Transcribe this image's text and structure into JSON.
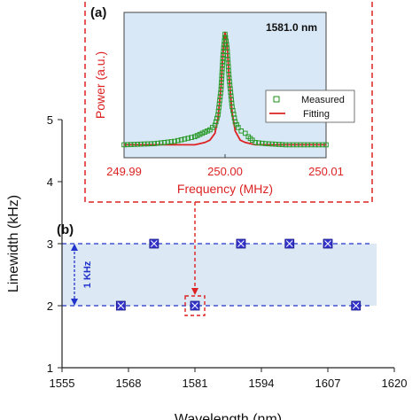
{
  "chart_data": [
    {
      "id": "b",
      "panel_label": "(b)",
      "type": "scatter",
      "xlabel": "Wavelength (nm)",
      "ylabel": "Linewidth (kHz)",
      "xlim": [
        1555,
        1620
      ],
      "ylim": [
        1,
        5
      ],
      "xticks": [
        1555,
        1568,
        1581,
        1594,
        1607,
        1620
      ],
      "yticks": [
        1,
        2,
        3,
        4,
        5
      ],
      "grid": false,
      "band": {
        "from": 2,
        "to": 3,
        "label": "1 KHz"
      },
      "points": [
        {
          "x": 1566.5,
          "y": 2
        },
        {
          "x": 1573.0,
          "y": 3
        },
        {
          "x": 1581.0,
          "y": 2
        },
        {
          "x": 1590.0,
          "y": 3
        },
        {
          "x": 1599.5,
          "y": 3
        },
        {
          "x": 1607.0,
          "y": 3
        },
        {
          "x": 1612.5,
          "y": 2
        }
      ],
      "highlight_x": 1581.0,
      "colors": {
        "marker": "#3333cc",
        "band": "#dde8f5",
        "dashed": "#2233cc",
        "highlight": "#dd2222"
      }
    },
    {
      "id": "a",
      "panel_label": "(a)",
      "type": "line",
      "annotation": "1581.0 nm",
      "xlabel": "Frequency (MHz)",
      "ylabel": "Power (a.u.)",
      "xlim": [
        249.99,
        250.01
      ],
      "xticks": [
        "249.99",
        "250.00",
        "250.01"
      ],
      "legend": {
        "placement": "right",
        "items": [
          "Measured",
          "Fitting"
        ]
      },
      "colors": {
        "measured": "#2a9a2a",
        "fitting": "#dd2222",
        "plot_bg": "#d9e8f6",
        "frame": "#dd2222"
      },
      "series": [
        {
          "name": "Fitting",
          "x": [
            249.99,
            249.996,
            249.997,
            249.9975,
            249.998,
            249.9985,
            249.999,
            249.9993,
            249.9996,
            249.9998,
            250.0,
            250.0002,
            250.0004,
            250.0007,
            250.001,
            250.0015,
            250.002,
            250.0025,
            250.003,
            250.004,
            250.01
          ],
          "y": [
            0.02,
            0.02,
            0.02,
            0.03,
            0.04,
            0.06,
            0.12,
            0.25,
            0.52,
            0.82,
            1.0,
            0.88,
            0.6,
            0.3,
            0.14,
            0.06,
            0.04,
            0.03,
            0.02,
            0.02,
            0.02
          ]
        },
        {
          "name": "Measured",
          "x": [
            249.99,
            249.993,
            249.995,
            249.996,
            249.997,
            249.9975,
            249.998,
            249.9985,
            249.999,
            249.9993,
            249.9996,
            249.9998,
            250.0,
            250.0002,
            250.0004,
            250.0007,
            250.001,
            250.0013,
            250.0016,
            250.002,
            250.0023,
            250.0027,
            250.003,
            250.004,
            250.006,
            250.01
          ],
          "y": [
            0.02,
            0.03,
            0.05,
            0.07,
            0.09,
            0.11,
            0.13,
            0.15,
            0.19,
            0.28,
            0.5,
            0.8,
            0.98,
            0.86,
            0.6,
            0.35,
            0.22,
            0.17,
            0.14,
            0.12,
            0.09,
            0.06,
            0.04,
            0.03,
            0.02,
            0.02
          ]
        }
      ]
    }
  ]
}
